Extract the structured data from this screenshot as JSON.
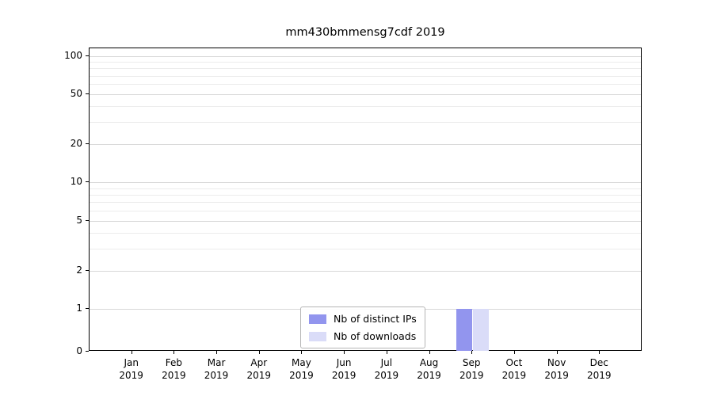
{
  "chart_data": {
    "type": "bar",
    "title": "mm430bmmensg7cdf 2019",
    "categories": [
      "Jan 2019",
      "Feb 2019",
      "Mar 2019",
      "Apr 2019",
      "May 2019",
      "Jun 2019",
      "Jul 2019",
      "Aug 2019",
      "Sep 2019",
      "Oct 2019",
      "Nov 2019",
      "Dec 2019"
    ],
    "series": [
      {
        "name": "Nb of distinct IPs",
        "color": "#9295ee",
        "values": [
          0,
          0,
          0,
          0,
          0,
          0,
          0,
          0,
          1,
          0,
          0,
          0
        ]
      },
      {
        "name": "Nb of downloads",
        "color": "#dadcf8",
        "values": [
          0,
          0,
          0,
          0,
          0,
          0,
          0,
          0,
          1,
          0,
          0,
          0
        ]
      }
    ],
    "xlabel": "",
    "ylabel": "",
    "yscale": "symlog",
    "yticks": [
      100,
      50,
      20,
      10,
      5,
      2,
      1,
      0
    ],
    "ylim": [
      0,
      100
    ],
    "grid": true,
    "legend_position": "bottom-center-inside"
  }
}
